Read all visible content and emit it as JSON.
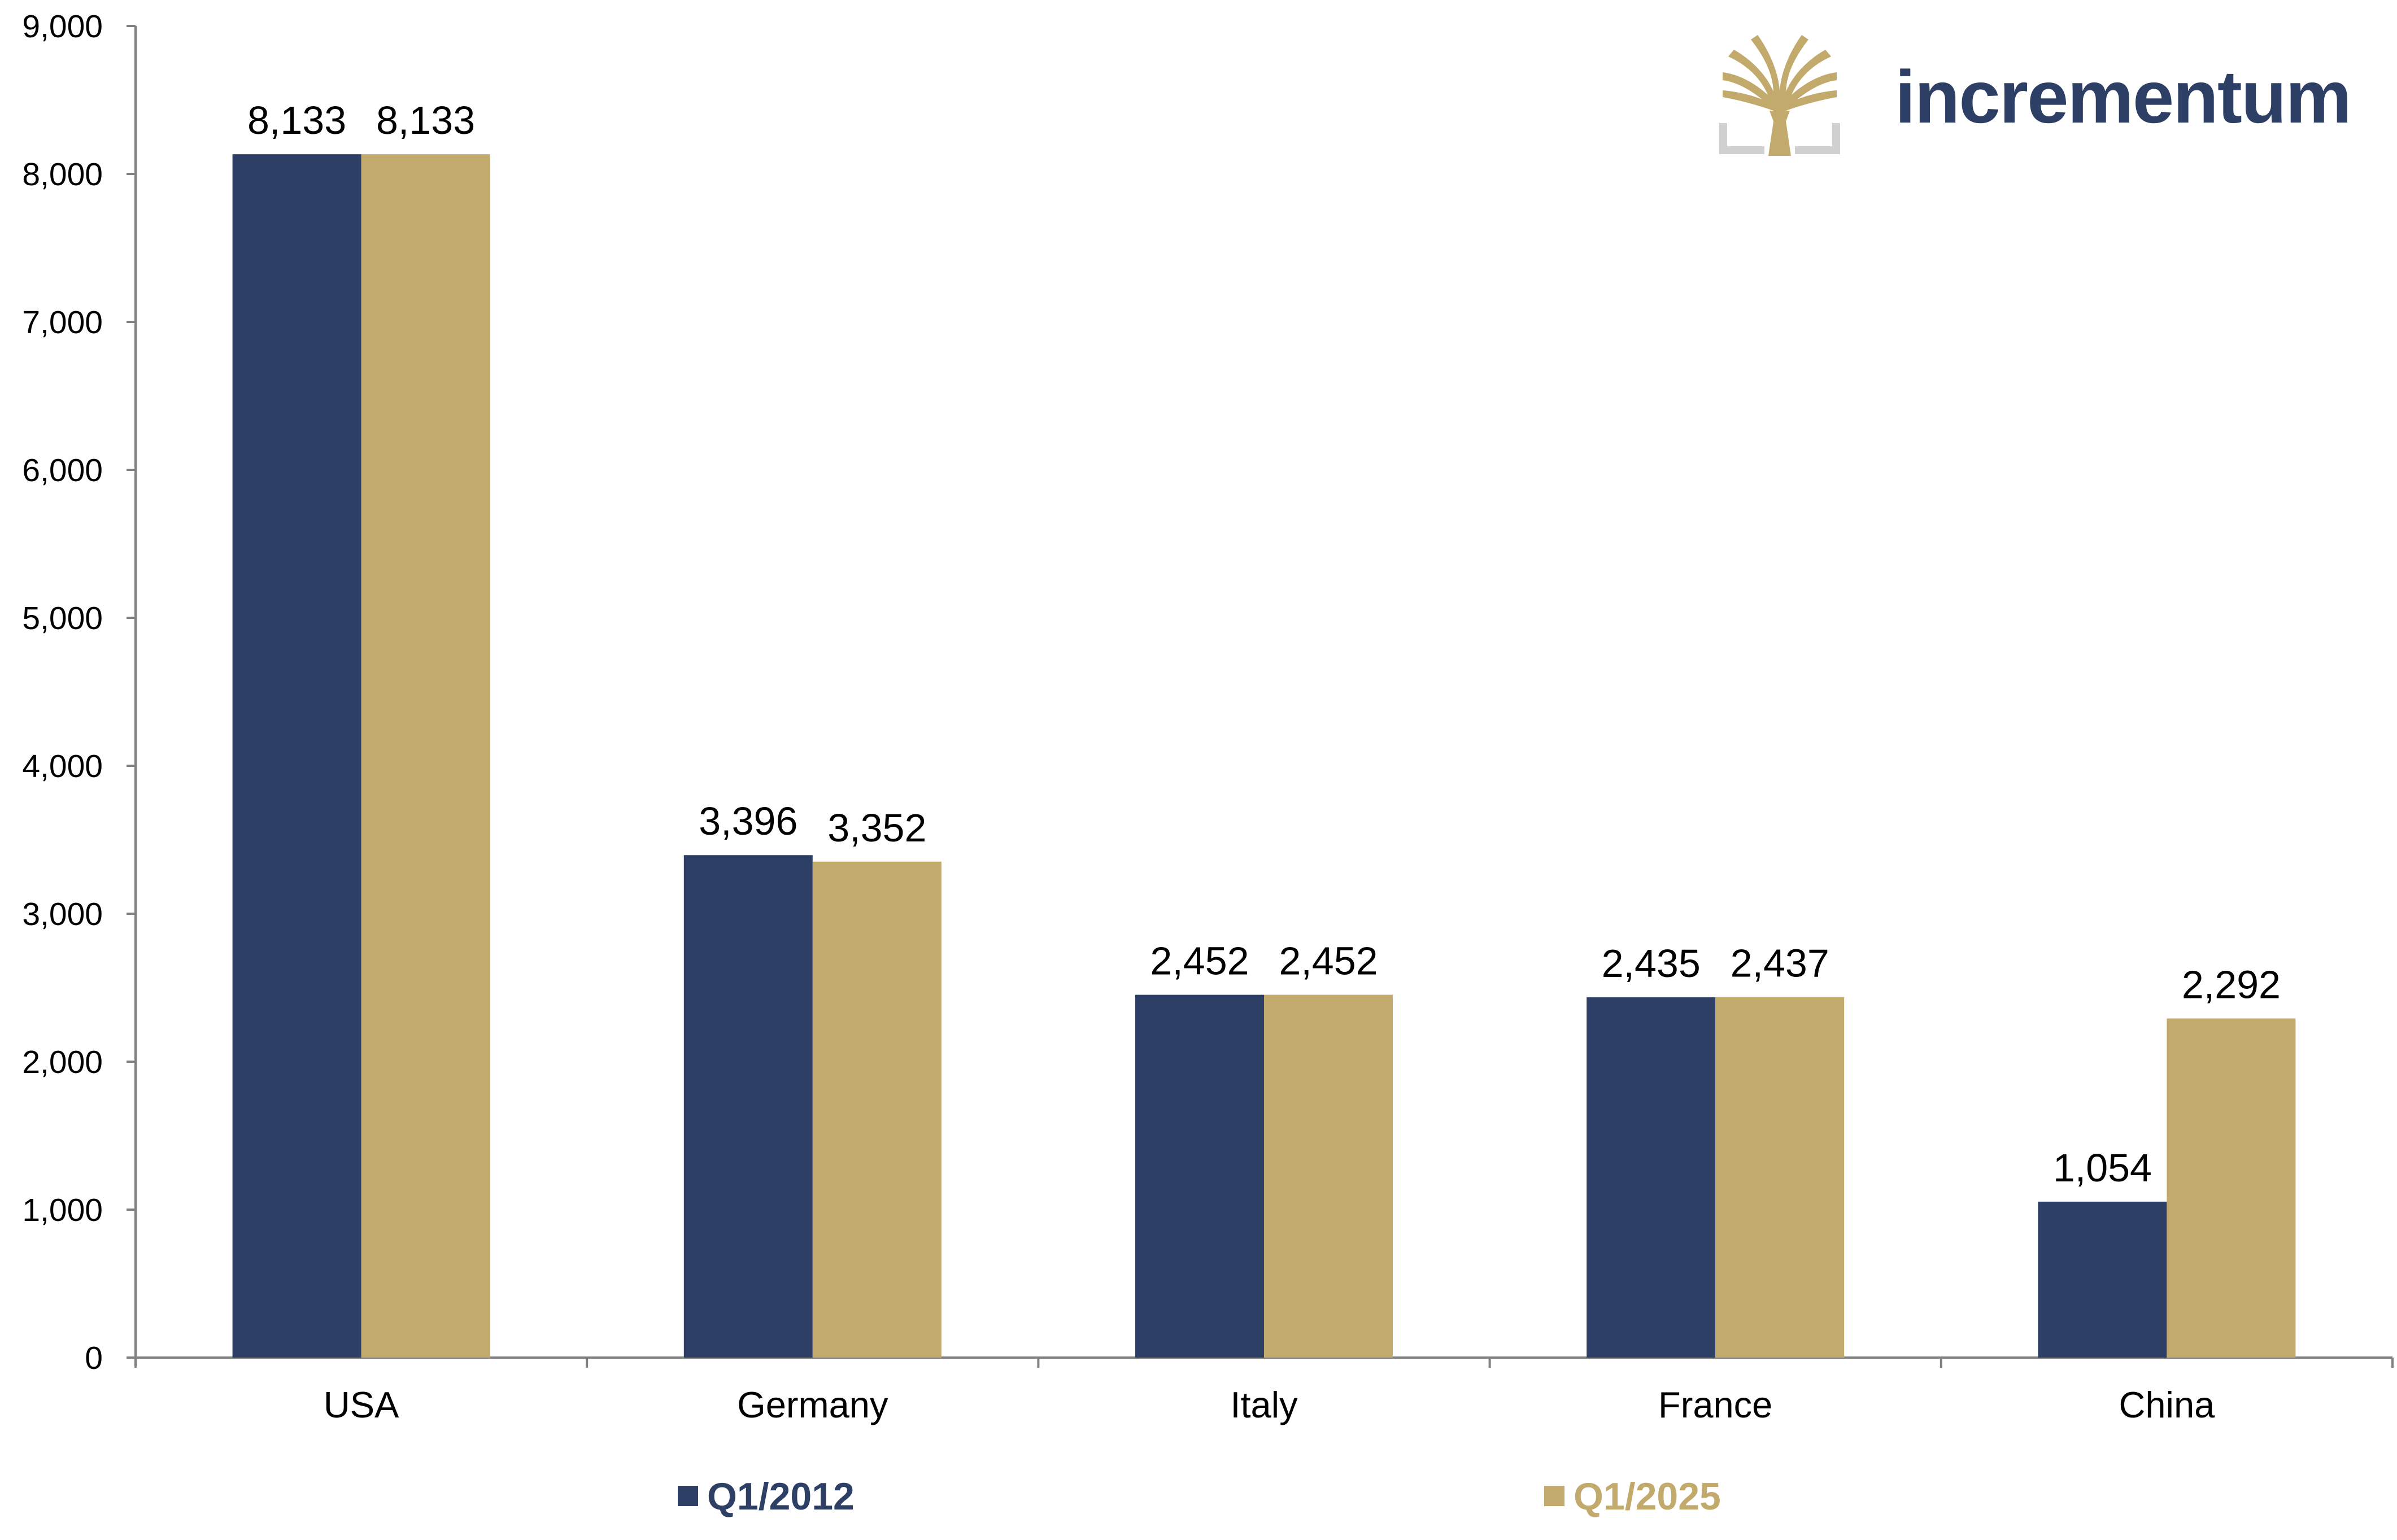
{
  "brand": {
    "name": "incrementum",
    "logo_icon": "tree-logo-icon",
    "text_color": "#2e3f66",
    "icon_color": "#c2a96c",
    "frame_color": "#d0d0d0"
  },
  "colors": {
    "series1": "#2e3f66",
    "series2": "#c2a96c",
    "axis": "#808080"
  },
  "chart_data": {
    "type": "bar",
    "categories": [
      "USA",
      "Germany",
      "Italy",
      "France",
      "China"
    ],
    "series": [
      {
        "name": "Q1/2012",
        "values": [
          8133,
          3396,
          2452,
          2435,
          1054
        ],
        "labels": [
          "8,133",
          "3,396",
          "2,452",
          "2,435",
          "1,054"
        ]
      },
      {
        "name": "Q1/2025",
        "values": [
          8133,
          3352,
          2452,
          2437,
          2292
        ],
        "labels": [
          "8,133",
          "3,352",
          "2,452",
          "2,437",
          "2,292"
        ]
      }
    ],
    "ylim": [
      0,
      9000
    ],
    "yticks": [
      0,
      1000,
      2000,
      3000,
      4000,
      5000,
      6000,
      7000,
      8000,
      9000
    ],
    "ytick_labels": [
      "0",
      "1,000",
      "2,000",
      "3,000",
      "4,000",
      "5,000",
      "6,000",
      "7,000",
      "8,000",
      "9,000"
    ],
    "title": "",
    "xlabel": "",
    "ylabel": "",
    "grid": false,
    "legend_position": "bottom"
  }
}
